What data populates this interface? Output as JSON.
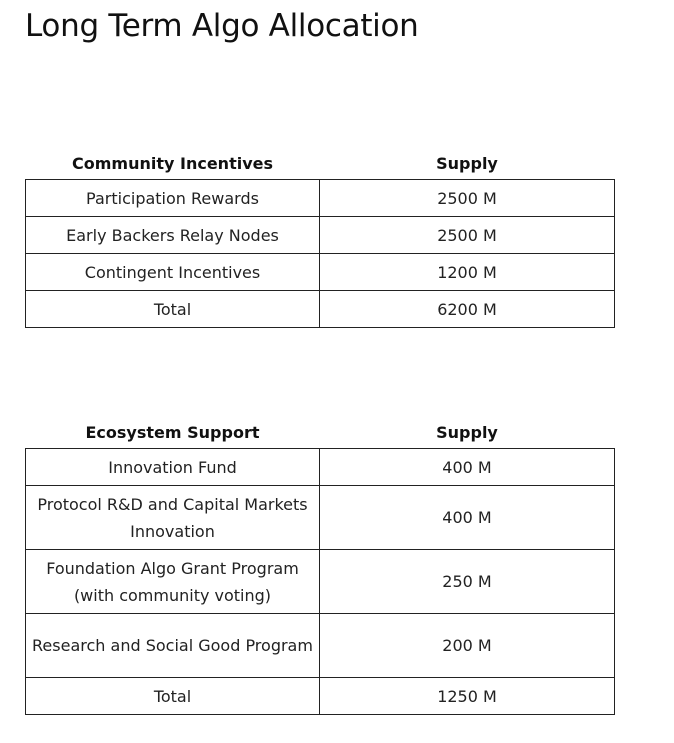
{
  "title": "Long Term Algo Allocation",
  "community_table": {
    "header_name": "Community Incentives",
    "header_supply": "Supply",
    "rows": [
      {
        "name": "Participation Rewards",
        "supply": "2500 M"
      },
      {
        "name": "Early Backers Relay Nodes",
        "supply": "2500 M"
      },
      {
        "name": "Contingent Incentives",
        "supply": "1200 M"
      },
      {
        "name": "Total",
        "supply": "6200 M"
      }
    ]
  },
  "ecosystem_table": {
    "header_name": "Ecosystem Support",
    "header_supply": "Supply",
    "rows": [
      {
        "name": "Innovation Fund",
        "supply": "400 M"
      },
      {
        "name": "Protocol R&D and Capital Markets Innovation",
        "supply": "400 M"
      },
      {
        "name": "Foundation Algo Grant Program (with community voting)",
        "supply": "250 M"
      },
      {
        "name": "Research and Social Good Program",
        "supply": "200 M"
      },
      {
        "name": "Total",
        "supply": "1250 M"
      }
    ]
  }
}
